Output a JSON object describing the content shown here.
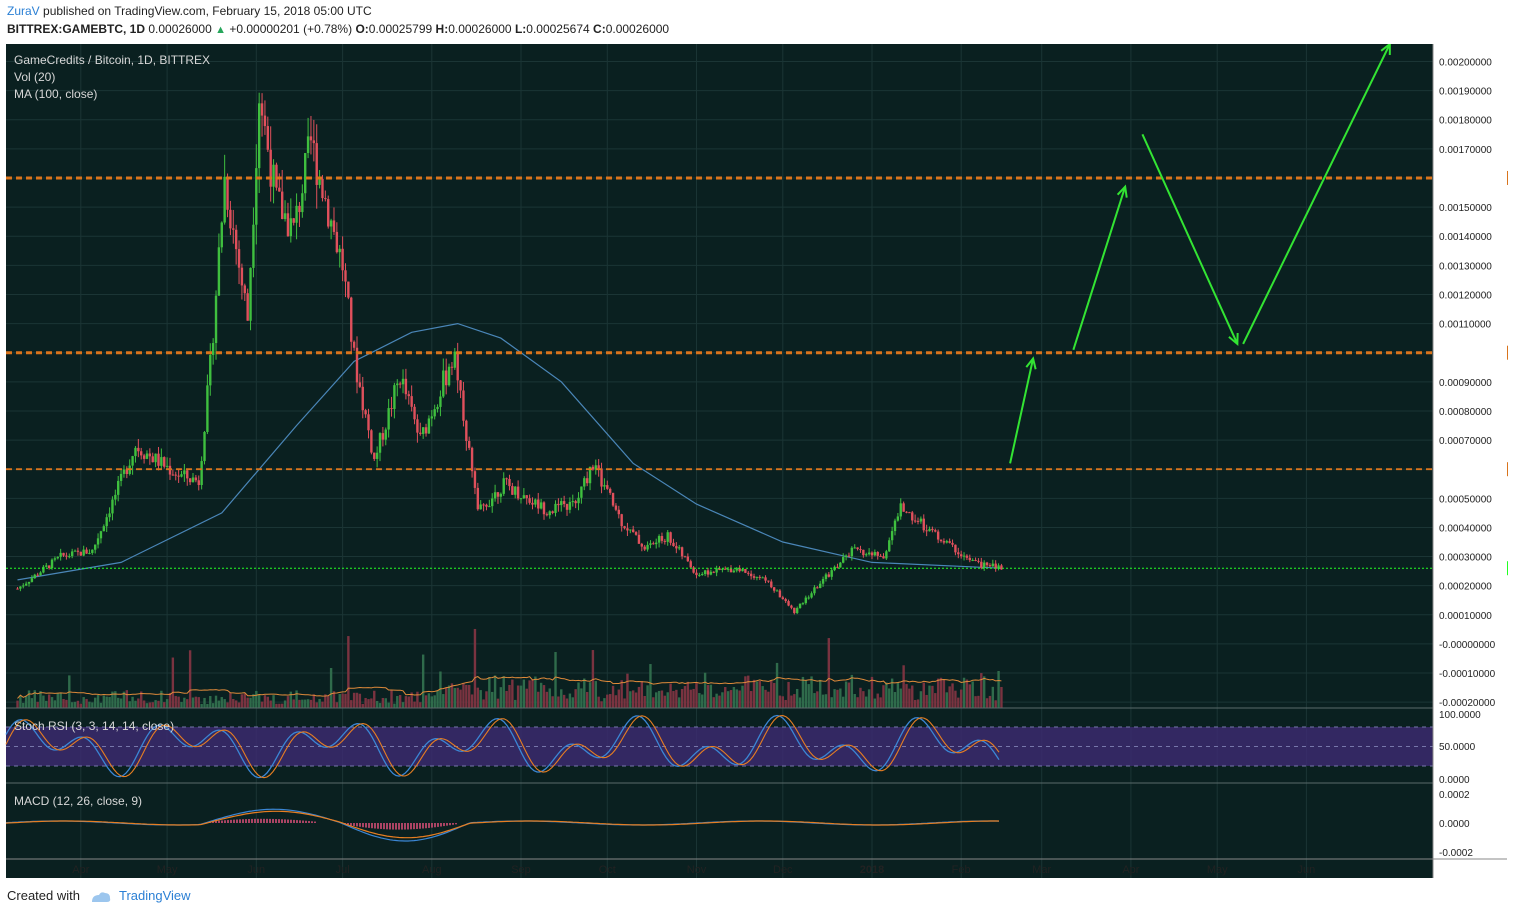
{
  "header": {
    "author": "ZuraV",
    "published_text": "published on TradingView.com, February 15, 2018 05:00 UTC",
    "symbol": "BITTREX:GAMEBTC, 1D",
    "last": "0.00026000",
    "change": "+0.00000201 (+0.78%)",
    "open_label": "O:",
    "open": "0.00025799",
    "high_label": "H:",
    "high": "0.00026000",
    "low_label": "L:",
    "low": "0.00025674",
    "close_label": "C:",
    "close": "0.00026000"
  },
  "legend": {
    "title": "GameCredits / Bitcoin, 1D, BITTREX",
    "vol": "Vol (20)",
    "ma": "MA (100, close)",
    "stoch": "Stoch RSI (3, 3, 14, 14, close)",
    "macd": "MACD (12, 26, close, 9)"
  },
  "footer": {
    "created_with": "Created with",
    "brand": "TradingView"
  },
  "colors": {
    "background": "#0a2020",
    "up": "#3fbf3f",
    "down": "#e0505c",
    "ma": "#4a86b8",
    "level": "#d9741c",
    "arrow": "#33e433",
    "last_price": "#22ff22",
    "rsi_band": "#3b2a6e"
  },
  "chart_data": {
    "type": "candlestick",
    "title": "GameCredits / Bitcoin, 1D, BITTREX",
    "price_axis_ticks": [
      "0.00200000",
      "0.00190000",
      "0.00180000",
      "0.00170000",
      "0.00160000",
      "0.00150000",
      "0.00140000",
      "0.00130000",
      "0.00120000",
      "0.00110000",
      "0.00100000",
      "0.00090000",
      "0.00080000",
      "0.00070000",
      "0.00060000",
      "0.00050000",
      "0.00040000",
      "0.00030000",
      "0.00020000",
      "0.00010000",
      "-0.00000000",
      "-0.00010000",
      "-0.00020000"
    ],
    "ylim": [
      -0.00022,
      0.00206
    ],
    "x_axis_labels": [
      "Apr",
      "May",
      "Jun",
      "Jul",
      "Aug",
      "Sep",
      "Oct",
      "Nov",
      "Dec",
      "2018",
      "Feb",
      "Mar",
      "Apr",
      "May",
      "Jun"
    ],
    "price_path": [
      {
        "date": "2017-03-10",
        "price": 0.00019
      },
      {
        "date": "2017-03-25",
        "price": 0.0003
      },
      {
        "date": "2017-04-05",
        "price": 0.00032
      },
      {
        "date": "2017-04-20",
        "price": 0.00068
      },
      {
        "date": "2017-05-05",
        "price": 0.00058
      },
      {
        "date": "2017-05-12",
        "price": 0.00056
      },
      {
        "date": "2017-05-16",
        "price": 0.00095
      },
      {
        "date": "2017-05-21",
        "price": 0.0016
      },
      {
        "date": "2017-05-29",
        "price": 0.00112
      },
      {
        "date": "2017-06-02",
        "price": 0.00189
      },
      {
        "date": "2017-06-08",
        "price": 0.00152
      },
      {
        "date": "2017-06-14",
        "price": 0.00142
      },
      {
        "date": "2017-06-20",
        "price": 0.00172
      },
      {
        "date": "2017-07-01",
        "price": 0.0013
      },
      {
        "date": "2017-07-05",
        "price": 0.00098
      },
      {
        "date": "2017-07-12",
        "price": 0.00063
      },
      {
        "date": "2017-07-21",
        "price": 0.00092
      },
      {
        "date": "2017-07-28",
        "price": 0.0007
      },
      {
        "date": "2017-08-05",
        "price": 0.0009
      },
      {
        "date": "2017-08-09",
        "price": 0.001
      },
      {
        "date": "2017-08-17",
        "price": 0.00045
      },
      {
        "date": "2017-08-26",
        "price": 0.00055
      },
      {
        "date": "2017-09-10",
        "price": 0.00046
      },
      {
        "date": "2017-09-20",
        "price": 0.00048
      },
      {
        "date": "2017-09-26",
        "price": 0.00062
      },
      {
        "date": "2017-10-06",
        "price": 0.00042
      },
      {
        "date": "2017-10-14",
        "price": 0.00033
      },
      {
        "date": "2017-10-22",
        "price": 0.00037
      },
      {
        "date": "2017-11-01",
        "price": 0.00024
      },
      {
        "date": "2017-11-15",
        "price": 0.00026
      },
      {
        "date": "2017-11-25",
        "price": 0.00022
      },
      {
        "date": "2017-12-05",
        "price": 0.00011
      },
      {
        "date": "2017-12-15",
        "price": 0.00022
      },
      {
        "date": "2017-12-25",
        "price": 0.00032
      },
      {
        "date": "2018-01-05",
        "price": 0.0003
      },
      {
        "date": "2018-01-11",
        "price": 0.00047
      },
      {
        "date": "2018-01-25",
        "price": 0.00036
      },
      {
        "date": "2018-02-05",
        "price": 0.00028
      },
      {
        "date": "2018-02-15",
        "price": 0.00026
      }
    ],
    "ma100_path": [
      {
        "date": "2017-03-10",
        "value": 0.00022
      },
      {
        "date": "2017-04-15",
        "value": 0.00028
      },
      {
        "date": "2017-05-20",
        "value": 0.00045
      },
      {
        "date": "2017-06-15",
        "value": 0.00075
      },
      {
        "date": "2017-07-05",
        "value": 0.00097
      },
      {
        "date": "2017-07-25",
        "value": 0.00107
      },
      {
        "date": "2017-08-10",
        "value": 0.0011
      },
      {
        "date": "2017-08-25",
        "value": 0.00105
      },
      {
        "date": "2017-09-15",
        "value": 0.0009
      },
      {
        "date": "2017-10-10",
        "value": 0.00062
      },
      {
        "date": "2017-11-01",
        "value": 0.00048
      },
      {
        "date": "2017-12-01",
        "value": 0.00035
      },
      {
        "date": "2018-01-01",
        "value": 0.00028
      },
      {
        "date": "2018-02-15",
        "value": 0.00026
      }
    ],
    "last_price": 0.00026,
    "levels": [
      0.0016,
      0.001,
      0.0006
    ],
    "projection_arrows": [
      {
        "from": {
          "date": "2018-02-18",
          "price": 0.00062
        },
        "to": {
          "date": "2018-02-26",
          "price": 0.00098
        }
      },
      {
        "from": {
          "date": "2018-03-12",
          "price": 0.00101
        },
        "to": {
          "date": "2018-03-30",
          "price": 0.00157
        }
      },
      {
        "from": {
          "date": "2018-04-05",
          "price": 0.00175
        },
        "to": {
          "date": "2018-05-08",
          "price": 0.00103
        }
      },
      {
        "from": {
          "date": "2018-05-10",
          "price": 0.00103
        },
        "to": {
          "date": "2018-06-30",
          "price": 0.00206
        }
      }
    ],
    "volume": {
      "name": "Vol (20)"
    },
    "stoch_rsi": {
      "name": "Stoch RSI (3, 3, 14, 14, close)",
      "ticks": [
        "100.0000",
        "50.0000",
        "0.0000"
      ],
      "band": [
        20,
        80
      ]
    },
    "macd": {
      "name": "MACD (12, 26, close, 9)",
      "ticks": [
        "0.0002",
        "0.0000",
        "-0.0002"
      ]
    }
  }
}
